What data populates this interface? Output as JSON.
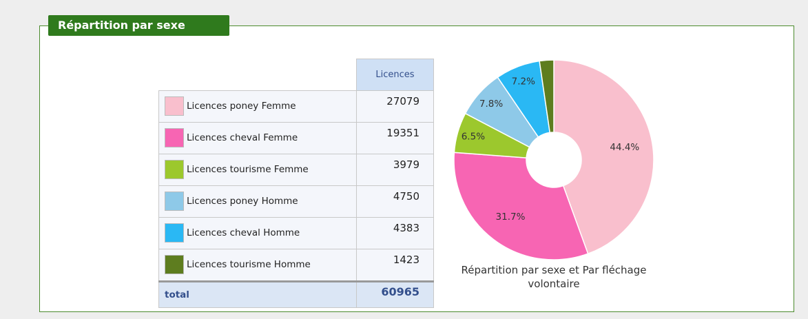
{
  "panel": {
    "title": "Répartition par sexe"
  },
  "table": {
    "header": "Licences",
    "rows": [
      [
        "Licences poney Femme",
        27079
      ],
      [
        "Licences cheval Femme",
        19351
      ],
      [
        "Licences tourisme Femme",
        3979
      ],
      [
        "Licences poney Homme",
        4750
      ],
      [
        "Licences cheval Homme",
        4383
      ],
      [
        "Licences tourisme Homme",
        1423
      ]
    ],
    "total": [
      "total",
      60965
    ]
  },
  "chart_data": {
    "type": "pie",
    "title": "Répartition par sexe et Par fléchage volontaire",
    "values": [
      44.4,
      31.7,
      6.5,
      7.8,
      7.2,
      2.3
    ],
    "value_labels": [
      "44.4%",
      "31.7%",
      "6.5%",
      "7.8%",
      "7.2%",
      null
    ],
    "colors": [
      "#f9bfcd",
      "#f765b3",
      "#9cc82d",
      "#8ec9e8",
      "#2ab8f4",
      "#5e7d1f"
    ],
    "donut": true
  }
}
